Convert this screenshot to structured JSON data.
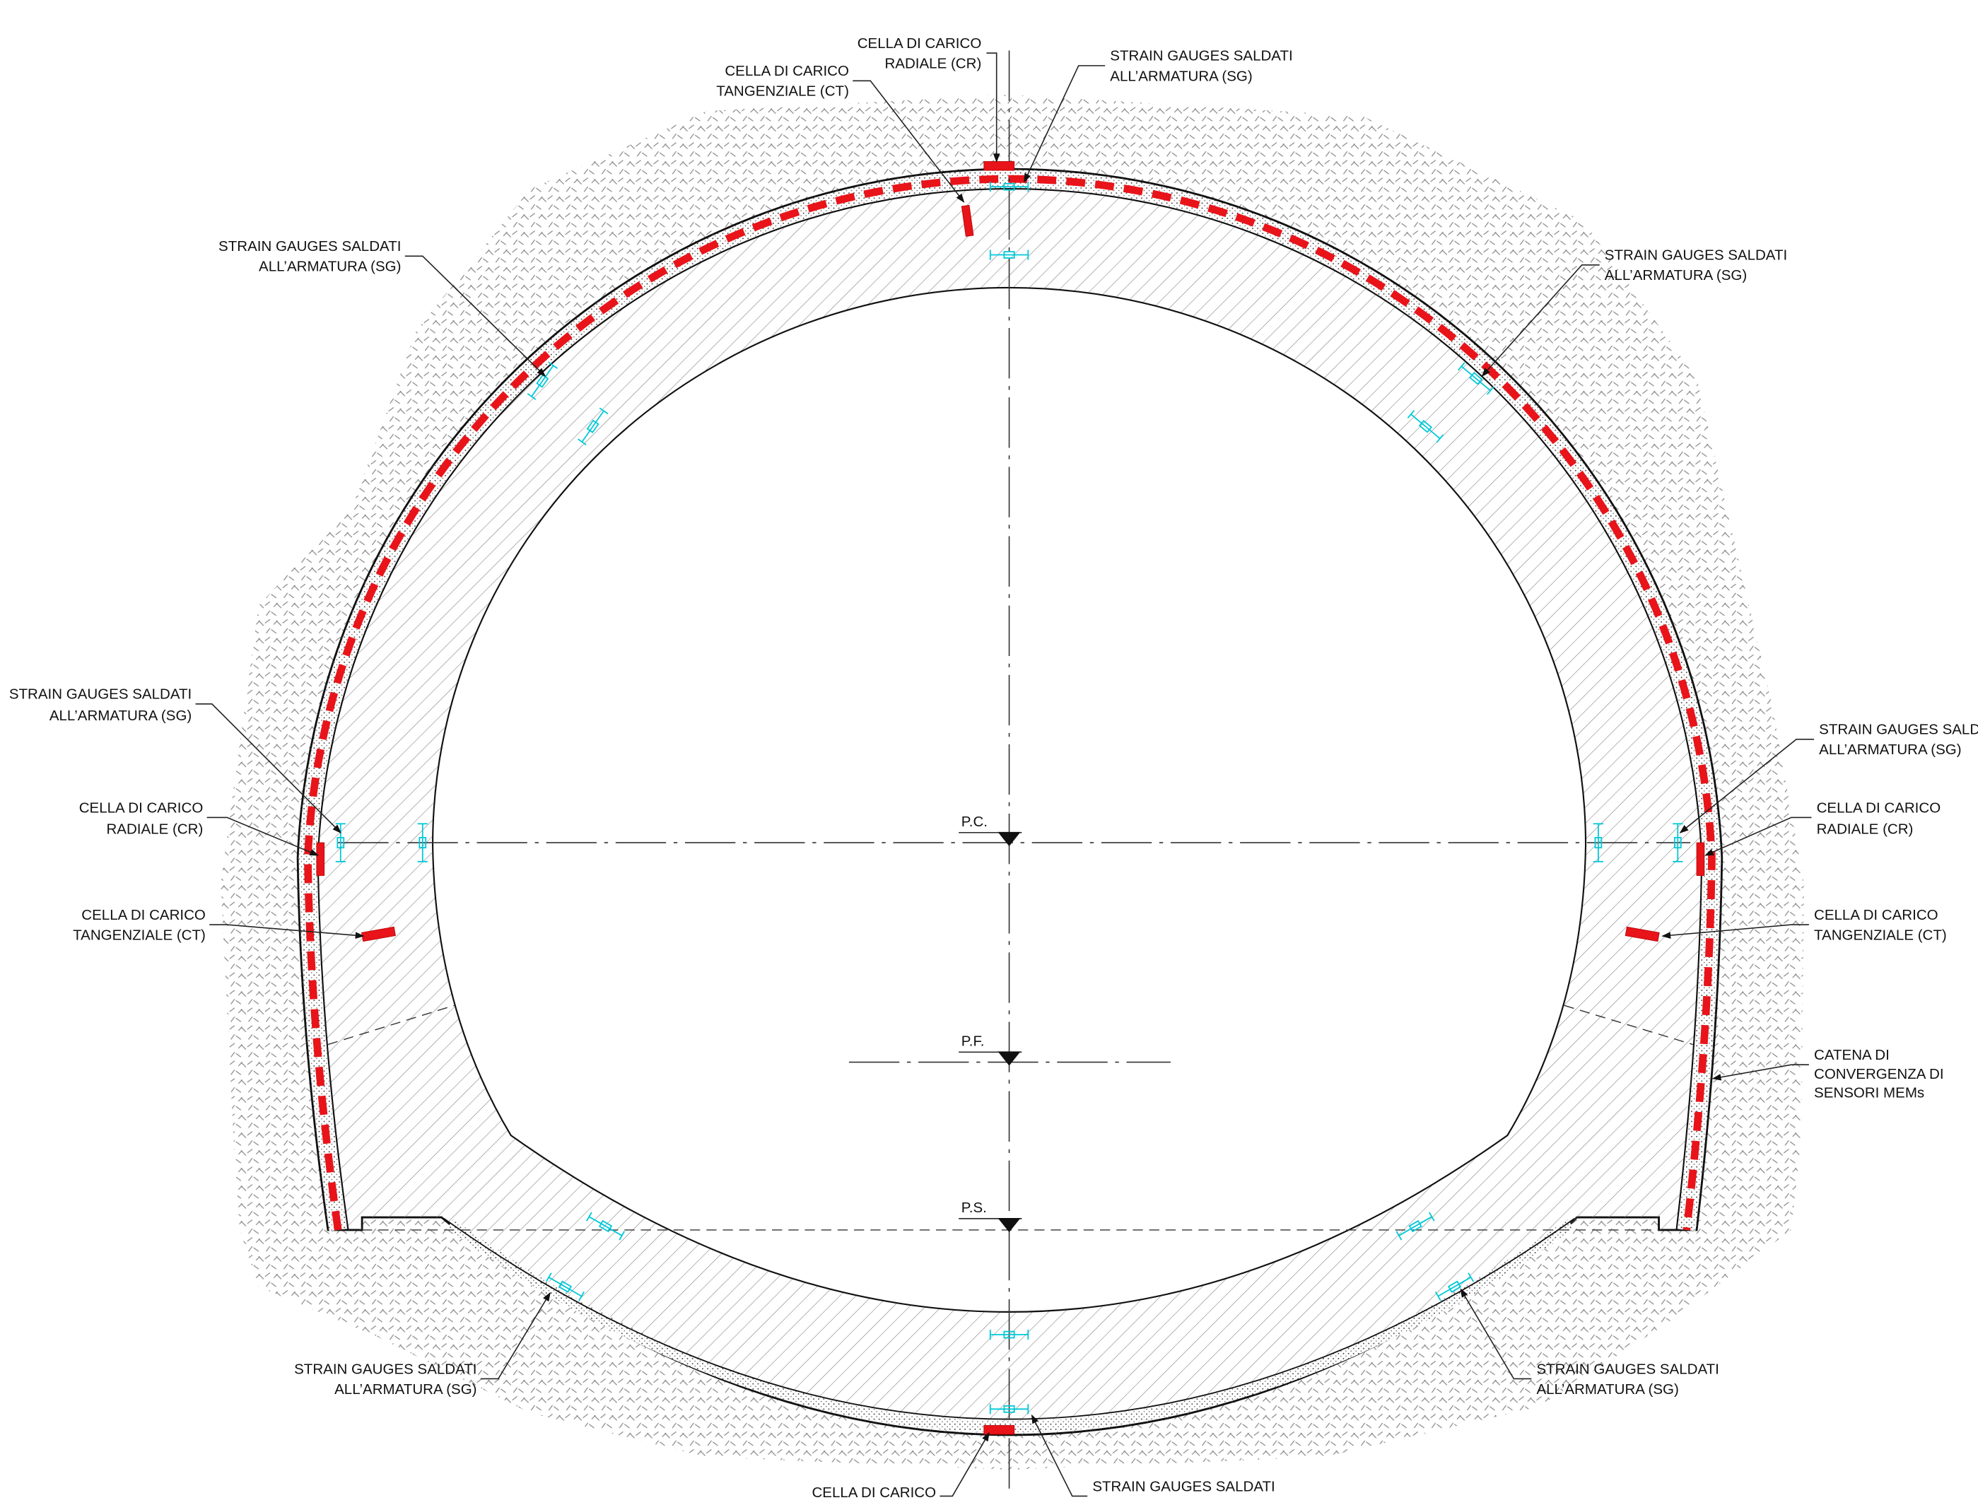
{
  "labels": [
    {
      "lines": [
        "CELLA DI CARICO",
        "RADIALE (CR)"
      ]
    },
    {
      "lines": [
        "CELLA DI CARICO",
        "TANGENZIALE (CT)"
      ]
    },
    {
      "lines": [
        "STRAIN GAUGES SALDATI",
        "ALL’ARMATURA (SG)"
      ]
    },
    {
      "lines": [
        "STRAIN GAUGES SALDATI",
        "ALL’ARMATURA (SG)"
      ]
    },
    {
      "lines": [
        "STRAIN GAUGES SALDATI",
        "ALL’ARMATURA (SG)"
      ]
    },
    {
      "lines": [
        "STRAIN GAUGES SALDATI",
        "ALL’ARMATURA (SG)"
      ]
    },
    {
      "lines": [
        "CELLA DI CARICO",
        "RADIALE (CR)"
      ]
    },
    {
      "lines": [
        "CELLA DI CARICO",
        "TANGENZIALE (CT)"
      ]
    },
    {
      "lines": [
        "STRAIN GAUGES SALDATI",
        "ALL’ARMATURA (SG)"
      ]
    },
    {
      "lines": [
        "CELLA DI CARICO",
        "RADIALE (CR)"
      ]
    },
    {
      "lines": [
        "CELLA DI CARICO",
        "TANGENZIALE (CT)"
      ]
    },
    {
      "lines": [
        "CATENA DI",
        "CONVERGENZA DI",
        "SENSORI MEMs"
      ]
    },
    {
      "lines": [
        "STRAIN GAUGES SALDATI",
        "ALL’ARMATURA (SG)"
      ]
    },
    {
      "lines": [
        "STRAIN GAUGES SALDATI",
        "ALL’ARMATURA (SG)"
      ]
    },
    {
      "lines": [
        "CELLA DI CARICO"
      ]
    },
    {
      "lines": [
        "STRAIN GAUGES SALDATI"
      ]
    }
  ],
  "levels": [
    "P.C.",
    "P.F.",
    "P.S."
  ]
}
